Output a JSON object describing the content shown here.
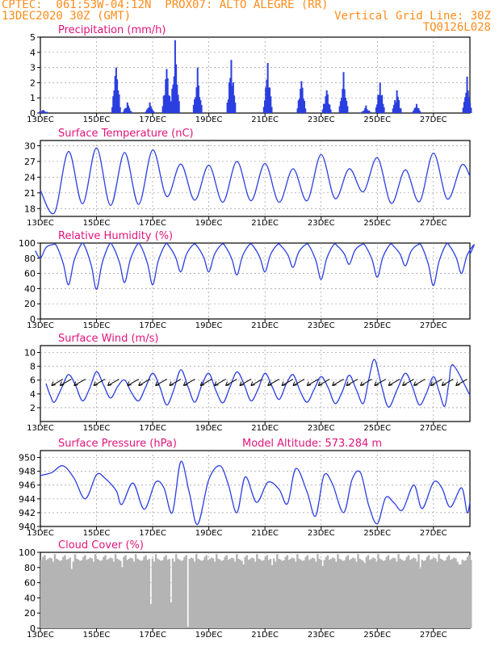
{
  "header": {
    "line1_left": "CPTEC:  061:53W-04:12N  PROX07: ALTO ALEGRE (RR)",
    "line2_left": "13DEC2020 30Z (GMT)",
    "line2_right": "Vertical Grid Line: 30Z",
    "line3_right": "TQ0126L028"
  },
  "colors": {
    "header": "#ff8c1a",
    "title": "#e0147a",
    "line": "#2b3fe0",
    "bar": "#2b3fe0",
    "cloud": "#b4b4b4",
    "grid": "#999999"
  },
  "panels": [
    {
      "id": "precip",
      "title": "Precipitation (mm/h)",
      "extra": ""
    },
    {
      "id": "temp",
      "title": "Surface Temperature (nC)",
      "extra": ""
    },
    {
      "id": "rh",
      "title": "Relative Humidity (%)",
      "extra": ""
    },
    {
      "id": "wind",
      "title": "Surface Wind (m/s)",
      "extra": ""
    },
    {
      "id": "pres",
      "title": "Surface Pressure (hPa)",
      "extra": "Model Altitude: 573.284 m"
    },
    {
      "id": "cloud",
      "title": "Cloud Cover (%)",
      "extra": ""
    }
  ],
  "chart_data": [
    {
      "type": "bar",
      "title": "Precipitation (mm/h)",
      "ylim": [
        0,
        5
      ],
      "yticks": [
        0,
        1,
        2,
        3,
        4,
        5
      ],
      "x_tick_labels": [
        "13DEC",
        "15DEC",
        "17DEC",
        "19DEC",
        "21DEC",
        "23DEC",
        "25DEC",
        "27DEC"
      ],
      "events": [
        {
          "day": 13.1,
          "peak": 0.2
        },
        {
          "day": 15.7,
          "peak": 3.0
        },
        {
          "day": 16.1,
          "peak": 0.7
        },
        {
          "day": 16.9,
          "peak": 0.7
        },
        {
          "day": 17.5,
          "peak": 2.9
        },
        {
          "day": 17.8,
          "peak": 4.8
        },
        {
          "day": 18.6,
          "peak": 3.0
        },
        {
          "day": 19.8,
          "peak": 3.5
        },
        {
          "day": 21.1,
          "peak": 3.3
        },
        {
          "day": 22.3,
          "peak": 2.1
        },
        {
          "day": 23.2,
          "peak": 1.5
        },
        {
          "day": 23.8,
          "peak": 2.7
        },
        {
          "day": 24.6,
          "peak": 0.5
        },
        {
          "day": 25.1,
          "peak": 2.0
        },
        {
          "day": 25.7,
          "peak": 1.5
        },
        {
          "day": 26.4,
          "peak": 0.6
        },
        {
          "day": 28.2,
          "peak": 2.4
        }
      ]
    },
    {
      "type": "line",
      "title": "Surface Temperature (nC)",
      "ylim": [
        16.5,
        31
      ],
      "yticks": [
        18,
        21,
        24,
        27,
        30
      ],
      "x_tick_labels": [
        "13DEC",
        "15DEC",
        "17DEC",
        "19DEC",
        "21DEC",
        "23DEC",
        "25DEC",
        "27DEC"
      ],
      "maxima": [
        {
          "day": 13.0,
          "v": 21.5
        },
        {
          "day": 14.0,
          "v": 28.9
        },
        {
          "day": 15.0,
          "v": 29.6
        },
        {
          "day": 16.0,
          "v": 28.7
        },
        {
          "day": 17.0,
          "v": 29.2
        },
        {
          "day": 18.0,
          "v": 26.5
        },
        {
          "day": 19.0,
          "v": 26.3
        },
        {
          "day": 20.0,
          "v": 27.0
        },
        {
          "day": 21.0,
          "v": 26.6
        },
        {
          "day": 22.0,
          "v": 25.6
        },
        {
          "day": 23.0,
          "v": 28.3
        },
        {
          "day": 24.0,
          "v": 25.6
        },
        {
          "day": 25.0,
          "v": 27.7
        },
        {
          "day": 26.0,
          "v": 25.4
        },
        {
          "day": 27.0,
          "v": 28.6
        },
        {
          "day": 28.0,
          "v": 26.3
        }
      ],
      "minima": [
        {
          "day": 13.5,
          "v": 17.2
        },
        {
          "day": 14.5,
          "v": 18.9
        },
        {
          "day": 15.5,
          "v": 18.6
        },
        {
          "day": 16.5,
          "v": 18.8
        },
        {
          "day": 17.5,
          "v": 20.3
        },
        {
          "day": 18.5,
          "v": 19.6
        },
        {
          "day": 19.5,
          "v": 19.2
        },
        {
          "day": 20.5,
          "v": 19.5
        },
        {
          "day": 21.5,
          "v": 19.2
        },
        {
          "day": 22.5,
          "v": 19.5
        },
        {
          "day": 23.5,
          "v": 19.9
        },
        {
          "day": 24.5,
          "v": 21.2
        },
        {
          "day": 25.5,
          "v": 19.0
        },
        {
          "day": 26.5,
          "v": 19.3
        },
        {
          "day": 27.5,
          "v": 19.8
        }
      ]
    },
    {
      "type": "line",
      "title": "Relative Humidity (%)",
      "ylim": [
        0,
        100
      ],
      "yticks": [
        0,
        20,
        40,
        60,
        80,
        100
      ],
      "x_tick_labels": [
        "13DEC",
        "15DEC",
        "17DEC",
        "19DEC",
        "21DEC",
        "23DEC",
        "25DEC",
        "27DEC"
      ],
      "minima": [
        {
          "day": 13.0,
          "v": 80
        },
        {
          "day": 14.0,
          "v": 45
        },
        {
          "day": 15.0,
          "v": 39
        },
        {
          "day": 16.0,
          "v": 48
        },
        {
          "day": 17.0,
          "v": 45
        },
        {
          "day": 18.0,
          "v": 62
        },
        {
          "day": 19.0,
          "v": 62
        },
        {
          "day": 20.0,
          "v": 58
        },
        {
          "day": 21.0,
          "v": 62
        },
        {
          "day": 22.0,
          "v": 68
        },
        {
          "day": 23.0,
          "v": 52
        },
        {
          "day": 24.0,
          "v": 72
        },
        {
          "day": 25.0,
          "v": 55
        },
        {
          "day": 26.0,
          "v": 70
        },
        {
          "day": 27.0,
          "v": 44
        },
        {
          "day": 28.0,
          "v": 60
        }
      ],
      "night_value": 98
    },
    {
      "type": "line",
      "title": "Surface Wind (m/s)",
      "ylim": [
        0,
        11
      ],
      "yticks": [
        2,
        4,
        6,
        8,
        10
      ],
      "x_tick_labels": [
        "13DEC",
        "15DEC",
        "17DEC",
        "19DEC",
        "21DEC",
        "23DEC",
        "25DEC",
        "27DEC"
      ],
      "maxima": [
        {
          "day": 13.2,
          "v": 5.5
        },
        {
          "day": 14.0,
          "v": 6.8
        },
        {
          "day": 15.0,
          "v": 7.2
        },
        {
          "day": 16.0,
          "v": 6.0
        },
        {
          "day": 17.0,
          "v": 7.0
        },
        {
          "day": 18.0,
          "v": 7.5
        },
        {
          "day": 19.0,
          "v": 7.0
        },
        {
          "day": 20.0,
          "v": 7.2
        },
        {
          "day": 21.0,
          "v": 7.0
        },
        {
          "day": 22.0,
          "v": 6.8
        },
        {
          "day": 23.0,
          "v": 6.5
        },
        {
          "day": 24.0,
          "v": 6.7
        },
        {
          "day": 24.9,
          "v": 9.0
        },
        {
          "day": 26.0,
          "v": 7.0
        },
        {
          "day": 27.0,
          "v": 6.5
        },
        {
          "day": 27.7,
          "v": 8.2
        }
      ],
      "minima": [
        {
          "day": 13.5,
          "v": 2.8
        },
        {
          "day": 14.5,
          "v": 3.0
        },
        {
          "day": 15.5,
          "v": 3.4
        },
        {
          "day": 16.5,
          "v": 3.0
        },
        {
          "day": 17.5,
          "v": 2.4
        },
        {
          "day": 18.5,
          "v": 2.8
        },
        {
          "day": 19.5,
          "v": 2.7
        },
        {
          "day": 20.5,
          "v": 3.0
        },
        {
          "day": 21.5,
          "v": 3.2
        },
        {
          "day": 22.5,
          "v": 2.8
        },
        {
          "day": 23.5,
          "v": 2.6
        },
        {
          "day": 24.5,
          "v": 2.6
        },
        {
          "day": 25.4,
          "v": 2.1
        },
        {
          "day": 26.5,
          "v": 2.4
        },
        {
          "day": 27.4,
          "v": 2.2
        }
      ],
      "barbs": [
        13.4,
        13.7,
        14.2,
        14.9,
        15.4,
        16.1,
        16.5,
        17.1,
        17.6,
        18.1,
        18.7,
        19.2,
        19.6,
        20.1,
        20.5,
        21.1,
        21.6,
        22.0,
        22.5,
        22.9,
        23.4,
        23.9,
        24.4,
        24.9,
        25.4,
        25.9,
        26.3,
        26.9,
        27.3,
        27.8
      ]
    },
    {
      "type": "line",
      "title": "Surface Pressure (hPa)",
      "ylim": [
        940,
        951
      ],
      "yticks": [
        940,
        942,
        944,
        946,
        948,
        950
      ],
      "x_tick_labels": [
        "13DEC",
        "15DEC",
        "17DEC",
        "19DEC",
        "21DEC",
        "23DEC",
        "25DEC",
        "27DEC"
      ],
      "points": [
        [
          13.0,
          947.4
        ],
        [
          13.4,
          947.8
        ],
        [
          13.8,
          948.8
        ],
        [
          14.2,
          947.0
        ],
        [
          14.6,
          944.0
        ],
        [
          15.0,
          947.5
        ],
        [
          15.3,
          947.0
        ],
        [
          15.7,
          945.2
        ],
        [
          15.9,
          943.2
        ],
        [
          16.3,
          946.3
        ],
        [
          16.7,
          942.5
        ],
        [
          17.1,
          946.4
        ],
        [
          17.4,
          945.6
        ],
        [
          17.7,
          942.0
        ],
        [
          18.0,
          949.4
        ],
        [
          18.3,
          945.0
        ],
        [
          18.6,
          940.3
        ],
        [
          19.0,
          946.8
        ],
        [
          19.4,
          948.8
        ],
        [
          19.7,
          946.0
        ],
        [
          20.0,
          942.0
        ],
        [
          20.3,
          947.2
        ],
        [
          20.7,
          943.5
        ],
        [
          21.1,
          946.4
        ],
        [
          21.5,
          945.4
        ],
        [
          21.8,
          943.3
        ],
        [
          22.1,
          948.4
        ],
        [
          22.5,
          945.0
        ],
        [
          22.8,
          941.5
        ],
        [
          23.1,
          947.4
        ],
        [
          23.4,
          946.2
        ],
        [
          23.8,
          942.0
        ],
        [
          24.1,
          946.8
        ],
        [
          24.4,
          947.8
        ],
        [
          24.7,
          943.0
        ],
        [
          25.0,
          940.4
        ],
        [
          25.3,
          944.2
        ],
        [
          25.6,
          943.4
        ],
        [
          25.9,
          942.4
        ],
        [
          26.3,
          946.0
        ],
        [
          26.6,
          942.6
        ],
        [
          27.0,
          946.4
        ],
        [
          27.3,
          945.6
        ],
        [
          27.6,
          942.8
        ],
        [
          28.0,
          945.6
        ],
        [
          28.2,
          942.0
        ],
        [
          28.3,
          943.6
        ]
      ]
    },
    {
      "type": "bar",
      "title": "Cloud Cover (%)",
      "ylim": [
        0,
        100
      ],
      "yticks": [
        0,
        20,
        40,
        60,
        80,
        100
      ],
      "x_tick_labels": [
        "13DEC",
        "15DEC",
        "17DEC",
        "19DEC",
        "21DEC",
        "23DEC",
        "25DEC",
        "27DEC"
      ],
      "typical_value": 95,
      "dips": [
        {
          "day": 14.1,
          "v": 78
        },
        {
          "day": 15.9,
          "v": 80
        },
        {
          "day": 16.9,
          "v": 32
        },
        {
          "day": 17.6,
          "v": 34
        },
        {
          "day": 18.2,
          "v": 2
        },
        {
          "day": 20.2,
          "v": 84
        },
        {
          "day": 21.2,
          "v": 83
        },
        {
          "day": 23.0,
          "v": 82
        },
        {
          "day": 24.5,
          "v": 86
        },
        {
          "day": 26.5,
          "v": 79
        },
        {
          "day": 27.9,
          "v": 84
        }
      ]
    }
  ]
}
